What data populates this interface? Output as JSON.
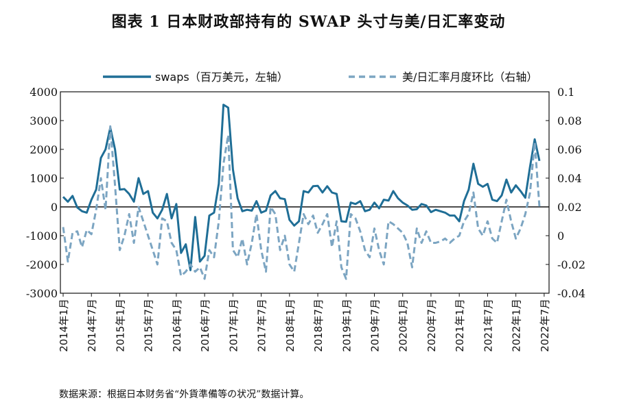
{
  "title": "图表 1    日本财政部持有的 SWAP 头寸与美/日汇率变动",
  "source": "数据来源：根据日本财务省“外貨準備等の状况”数据计算。",
  "colors": {
    "swaps": "#1f6e96",
    "fx": "#7ca5c2",
    "axis": "#111111"
  },
  "chart_data": {
    "type": "line",
    "title": "图表 1    日本财政部持有的 SWAP 头寸与美/日汇率变动",
    "xlabel": "",
    "ylabel": "",
    "legend": "top-right",
    "y_left": {
      "lim": [
        -3000,
        4000
      ],
      "ticks": [
        -3000,
        -2000,
        -1000,
        0,
        1000,
        2000,
        3000,
        4000
      ]
    },
    "y_right": {
      "lim": [
        -0.04,
        0.1
      ],
      "ticks": [
        -0.04,
        -0.02,
        0,
        0.02,
        0.04,
        0.06,
        0.08,
        0.1
      ],
      "tick_labels": [
        "-0.04",
        "-0.02",
        "0",
        "0.02",
        "0.04",
        "0.06",
        "0.08",
        "0.1"
      ]
    },
    "x_ticks": [
      "2014年1月",
      "2014年7月",
      "2015年1月",
      "2015年7月",
      "2016年1月",
      "2016年7月",
      "2017年1月",
      "2017年7月",
      "2018年1月",
      "2018年7月",
      "2019年1月",
      "2019年7月",
      "2020年1月",
      "2020年7月",
      "2021年1月",
      "2021年7月",
      "2022年1月",
      "2022年7月"
    ],
    "x": [
      "2014年1月",
      "2014年2月",
      "2014年3月",
      "2014年4月",
      "2014年5月",
      "2014年6月",
      "2014年7月",
      "2014年8月",
      "2014年9月",
      "2014年10月",
      "2014年11月",
      "2014年12月",
      "2015年1月",
      "2015年2月",
      "2015年3月",
      "2015年4月",
      "2015年5月",
      "2015年6月",
      "2015年7月",
      "2015年8月",
      "2015年9月",
      "2015年10月",
      "2015年11月",
      "2015年12月",
      "2016年1月",
      "2016年2月",
      "2016年3月",
      "2016年4月",
      "2016年5月",
      "2016年6月",
      "2016年7月",
      "2016年8月",
      "2016年9月",
      "2016年10月",
      "2016年11月",
      "2016年12月",
      "2017年1月",
      "2017年2月",
      "2017年3月",
      "2017年4月",
      "2017年5月",
      "2017年6月",
      "2017年7月",
      "2017年8月",
      "2017年9月",
      "2017年10月",
      "2017年11月",
      "2017年12月",
      "2018年1月",
      "2018年2月",
      "2018年3月",
      "2018年4月",
      "2018年5月",
      "2018年6月",
      "2018年7月",
      "2018年8月",
      "2018年9月",
      "2018年10月",
      "2018年11月",
      "2018年12月",
      "2019年1月",
      "2019年2月",
      "2019年3月",
      "2019年4月",
      "2019年5月",
      "2019年6月",
      "2019年7月",
      "2019年8月",
      "2019年9月",
      "2019年10月",
      "2019年11月",
      "2019年12月",
      "2020年1月",
      "2020年2月",
      "2020年3月",
      "2020年4月",
      "2020年5月",
      "2020年6月",
      "2020年7月",
      "2020年8月",
      "2020年9月",
      "2020年10月",
      "2020年11月",
      "2020年12月",
      "2021年1月",
      "2021年2月",
      "2021年3月",
      "2021年4月",
      "2021年5月",
      "2021年6月",
      "2021年7月",
      "2021年8月",
      "2021年9月",
      "2021年10月",
      "2021年11月",
      "2021年12月",
      "2022年1月",
      "2022年2月",
      "2022年3月",
      "2022年4月",
      "2022年5月",
      "2022年6月"
    ],
    "series": [
      {
        "name": "swaps（百万美元，左轴）",
        "axis": "left",
        "style": "solid",
        "values": [
          350,
          180,
          380,
          -20,
          -150,
          -200,
          250,
          600,
          1700,
          2000,
          2750,
          2000,
          600,
          620,
          450,
          180,
          1000,
          450,
          550,
          -200,
          -400,
          -100,
          450,
          -400,
          100,
          -1600,
          -1300,
          -2200,
          -350,
          -1900,
          -1700,
          -300,
          -200,
          800,
          3550,
          3450,
          1300,
          300,
          -150,
          -100,
          -130,
          200,
          -200,
          -130,
          400,
          550,
          300,
          270,
          -450,
          -650,
          -500,
          550,
          500,
          720,
          730,
          500,
          720,
          500,
          450,
          -500,
          -520,
          150,
          100,
          200,
          -150,
          -100,
          150,
          -50,
          250,
          220,
          550,
          300,
          150,
          50,
          -100,
          -80,
          100,
          50,
          -180,
          -100,
          -150,
          -200,
          -300,
          -300,
          -500,
          200,
          600,
          1500,
          800,
          700,
          800,
          250,
          200,
          400,
          950,
          500,
          750,
          550,
          320,
          1400,
          2350,
          1600
        ]
      },
      {
        "name": "美/日汇率月度环比（右轴）",
        "axis": "right",
        "style": "dashed",
        "values": [
          0.006,
          -0.018,
          0.002,
          0.003,
          -0.008,
          0.004,
          0.001,
          0.018,
          0.04,
          0.018,
          0.076,
          0.035,
          -0.01,
          0.0,
          0.015,
          -0.005,
          0.02,
          0.01,
          0.0,
          -0.01,
          -0.02,
          0.012,
          0.01,
          -0.005,
          -0.01,
          -0.028,
          -0.025,
          -0.02,
          -0.025,
          -0.022,
          -0.03,
          -0.01,
          -0.015,
          0.01,
          0.05,
          0.07,
          -0.01,
          -0.015,
          -0.002,
          -0.02,
          -0.005,
          0.015,
          -0.01,
          -0.025,
          0.02,
          0.015,
          -0.01,
          0.0,
          -0.02,
          -0.025,
          -0.005,
          0.015,
          0.008,
          0.014,
          0.002,
          0.008,
          0.015,
          -0.008,
          0.01,
          -0.022,
          -0.03,
          0.015,
          0.012,
          0.003,
          -0.01,
          -0.015,
          0.005,
          -0.01,
          -0.02,
          0.01,
          0.008,
          0.005,
          0.002,
          -0.005,
          -0.022,
          0.005,
          -0.005,
          0.003,
          -0.005,
          -0.005,
          -0.004,
          -0.002,
          -0.005,
          -0.002,
          0.0,
          0.01,
          0.015,
          0.03,
          0.005,
          0.0,
          0.01,
          -0.002,
          -0.005,
          0.01,
          0.025,
          0.01,
          -0.002,
          0.005,
          0.015,
          0.03,
          0.065,
          0.02
        ]
      }
    ]
  }
}
